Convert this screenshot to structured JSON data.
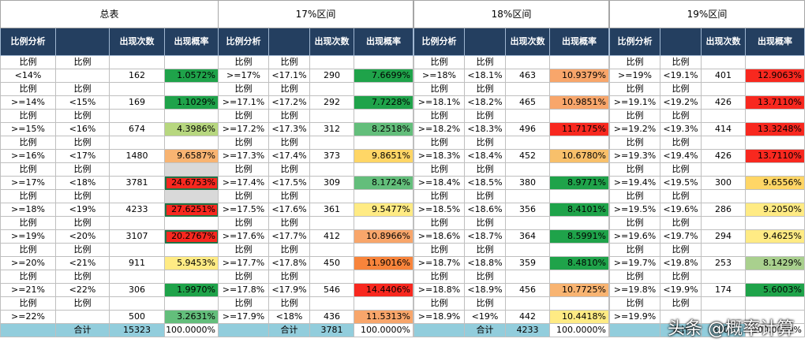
{
  "header_labels": {
    "analysis": "比例分析",
    "count": "出现次数",
    "prob": "出现概率",
    "ratio": "比例",
    "total": "合计"
  },
  "colors": {
    "header_bg": "#243f60",
    "total_bg": "#92cddc",
    "dark_green": "#1fa34a",
    "green": "#63be7b",
    "light_green": "#a9d08e",
    "yellow": "#ffeb84",
    "orange": "#f8a66b",
    "red": "#f8281f",
    "grey": "#d9d9d9"
  },
  "blocks": [
    {
      "title": "总表",
      "rows": [
        {
          "a": "<14%",
          "b": "",
          "n": "162",
          "p": "1.0572%",
          "c": "#1fa34a"
        },
        {
          "a": ">=14%",
          "b": "<15%",
          "n": "169",
          "p": "1.1029%",
          "c": "#1fa34a"
        },
        {
          "a": ">=15%",
          "b": "<16%",
          "n": "674",
          "p": "4.3986%",
          "c": "#b7d77f"
        },
        {
          "a": ">=16%",
          "b": "<17%",
          "n": "1480",
          "p": "9.6587%",
          "c": "#f8b472"
        },
        {
          "a": ">=17%",
          "b": "<18%",
          "n": "3781",
          "p": "24.6753%",
          "c": "#f8281f"
        },
        {
          "a": ">=18%",
          "b": "<19%",
          "n": "4233",
          "p": "27.6251%",
          "c": "#f8281f"
        },
        {
          "a": ">=19%",
          "b": "<20%",
          "n": "3107",
          "p": "20.2767%",
          "c": "#f8281f"
        },
        {
          "a": ">=20%",
          "b": "<21%",
          "n": "911",
          "p": "5.9453%",
          "c": "#ffeb84"
        },
        {
          "a": ">=21%",
          "b": "<22%",
          "n": "306",
          "p": "1.9970%",
          "c": "#1fa34a"
        },
        {
          "a": ">=22%",
          "b": "",
          "n": "500",
          "p": "3.2631%",
          "c": "#63be7b"
        }
      ],
      "total_count": "15323",
      "total_prob": "100.0000%"
    },
    {
      "title": "17%区间",
      "rows": [
        {
          "a": ">=17%",
          "b": "<17.1%",
          "n": "290",
          "p": "7.6699%",
          "c": "#1fa34a"
        },
        {
          "a": ">=17.1%",
          "b": "<17.2%",
          "n": "292",
          "p": "7.7228%",
          "c": "#1fa34a"
        },
        {
          "a": ">=17.2%",
          "b": "<17.3%",
          "n": "312",
          "p": "8.2518%",
          "c": "#63be7b"
        },
        {
          "a": ">=17.3%",
          "b": "<17.4%",
          "n": "373",
          "p": "9.8651%",
          "c": "#ffd666"
        },
        {
          "a": ">=17.4%",
          "b": "<17.5%",
          "n": "309",
          "p": "8.1724%",
          "c": "#63be7b"
        },
        {
          "a": ">=17.5%",
          "b": "<17.6%",
          "n": "361",
          "p": "9.5477%",
          "c": "#ffeb84"
        },
        {
          "a": ">=17.6%",
          "b": "<17.7%",
          "n": "412",
          "p": "10.8966%",
          "c": "#f8a66b"
        },
        {
          "a": ">=17.7%",
          "b": "<17.8%",
          "n": "450",
          "p": "11.9016%",
          "c": "#f8843b"
        },
        {
          "a": ">=17.8%",
          "b": "<17.9%",
          "n": "546",
          "p": "14.4406%",
          "c": "#f8281f"
        },
        {
          "a": ">=17.9%",
          "b": "<18%",
          "n": "436",
          "p": "11.5313%",
          "c": "#f8a66b"
        }
      ],
      "total_count": "3781",
      "total_prob": "100.0000%"
    },
    {
      "title": "18%区间",
      "rows": [
        {
          "a": ">=18%",
          "b": "<18.1%",
          "n": "463",
          "p": "10.9379%",
          "c": "#f8a66b"
        },
        {
          "a": ">=18.1%",
          "b": "<18.2%",
          "n": "465",
          "p": "10.9851%",
          "c": "#f8a66b"
        },
        {
          "a": ">=18.2%",
          "b": "<18.3%",
          "n": "496",
          "p": "11.7175%",
          "c": "#f8281f"
        },
        {
          "a": ">=18.3%",
          "b": "<18.4%",
          "n": "452",
          "p": "10.6780%",
          "c": "#f8c06b"
        },
        {
          "a": ">=18.4%",
          "b": "<18.5%",
          "n": "380",
          "p": "8.9771%",
          "c": "#1fa34a"
        },
        {
          "a": ">=18.5%",
          "b": "<18.6%",
          "n": "356",
          "p": "8.4101%",
          "c": "#1fa34a"
        },
        {
          "a": ">=18.6%",
          "b": "<18.7%",
          "n": "364",
          "p": "8.5991%",
          "c": "#1fa34a"
        },
        {
          "a": ">=18.7%",
          "b": "<18.8%",
          "n": "359",
          "p": "8.4810%",
          "c": "#1fa34a"
        },
        {
          "a": ">=18.8%",
          "b": "<18.9%",
          "n": "456",
          "p": "10.7725%",
          "c": "#f8b472"
        },
        {
          "a": ">=18.9%",
          "b": "<19%",
          "n": "442",
          "p": "10.4418%",
          "c": "#ffeb84"
        }
      ],
      "total_count": "4233",
      "total_prob": "100.0000%"
    },
    {
      "title": "19%区间",
      "rows": [
        {
          "a": ">=19%",
          "b": "<19.1%",
          "n": "401",
          "p": "12.9063%",
          "c": "#f8281f"
        },
        {
          "a": ">=19.1%",
          "b": "<19.2%",
          "n": "426",
          "p": "13.7110%",
          "c": "#f8281f"
        },
        {
          "a": ">=19.2%",
          "b": "<19.3%",
          "n": "414",
          "p": "13.3248%",
          "c": "#f8281f"
        },
        {
          "a": ">=19.3%",
          "b": "<19.4%",
          "n": "426",
          "p": "13.7110%",
          "c": "#f8281f"
        },
        {
          "a": ">=19.4%",
          "b": "<19.5%",
          "n": "300",
          "p": "9.6556%",
          "c": "#ffd666"
        },
        {
          "a": ">=19.5%",
          "b": "<19.6%",
          "n": "286",
          "p": "9.2050%",
          "c": "#ffeb84"
        },
        {
          "a": ">=19.6%",
          "b": "<19.7%",
          "n": "294",
          "p": "9.4625%",
          "c": "#ffeb84"
        },
        {
          "a": ">=19.7%",
          "b": "<19.8%",
          "n": "253",
          "p": "8.1429%",
          "c": "#a9d08e"
        },
        {
          "a": ">=19.8%",
          "b": "<19.9%",
          "n": "174",
          "p": "5.6003%",
          "c": "#1fa34a"
        },
        {
          "a": ">=19.9%",
          "b": "",
          "n": "",
          "p": "",
          "c": "#ffffff"
        }
      ],
      "total_count": "3107",
      "total_prob": "100.0000%"
    }
  ],
  "watermark": "头条 @概率计算"
}
